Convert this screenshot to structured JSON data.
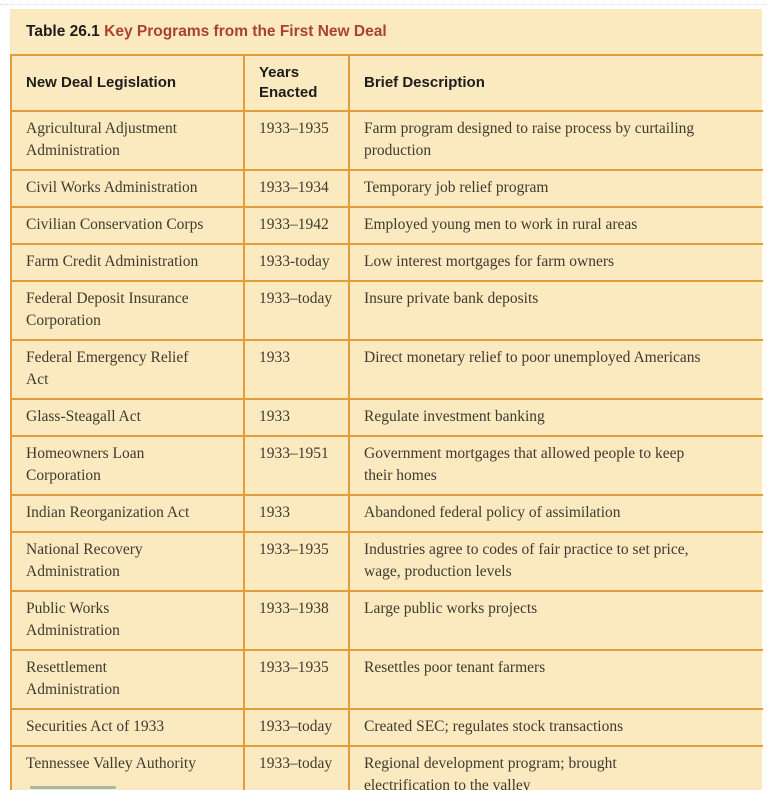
{
  "colors": {
    "table_background": "#fbe9bf",
    "border": "#e39c3c",
    "title_accent": "#aa4232",
    "heading_text": "#1d1d1b",
    "body_text": "#3f3b30"
  },
  "table": {
    "id_label": "Table 26.1",
    "title": "Key Programs from the First New Deal",
    "columns": {
      "legislation": "New Deal Legislation",
      "years": "Years\nEnacted",
      "description": "Brief Description"
    },
    "rows": [
      {
        "legislation": "Agricultural Adjustment\nAdministration",
        "years": "1933–1935",
        "description": "Farm program designed to raise process by curtailing\nproduction"
      },
      {
        "legislation": "Civil Works Administration",
        "years": "1933–1934",
        "description": "Temporary job relief program"
      },
      {
        "legislation": "Civilian Conservation Corps",
        "years": "1933–1942",
        "description": "Employed young men to work in rural areas"
      },
      {
        "legislation": "Farm Credit Administration",
        "years": "1933-today",
        "description": "Low interest mortgages for farm owners"
      },
      {
        "legislation": "Federal Deposit Insurance\nCorporation",
        "years": "1933–today",
        "description": "Insure private bank deposits"
      },
      {
        "legislation": "Federal Emergency Relief\nAct",
        "years": "1933",
        "description": "Direct monetary relief to poor unemployed Americans"
      },
      {
        "legislation": "Glass-Steagall Act",
        "years": "1933",
        "description": "Regulate investment banking"
      },
      {
        "legislation": "Homeowners Loan\nCorporation",
        "years": "1933–1951",
        "description": "Government mortgages that allowed people to keep\ntheir homes"
      },
      {
        "legislation": "Indian Reorganization Act",
        "years": "1933",
        "description": "Abandoned federal policy of assimilation"
      },
      {
        "legislation": "National Recovery\nAdministration",
        "years": "1933–1935",
        "description": "Industries agree to codes of fair practice to set price,\nwage, production levels"
      },
      {
        "legislation": "Public Works\nAdministration",
        "years": "1933–1938",
        "description": "Large public works projects"
      },
      {
        "legislation": "Resettlement\nAdministration",
        "years": "1933–1935",
        "description": "Resettles poor tenant farmers"
      },
      {
        "legislation": "Securities Act of 1933",
        "years": "1933–today",
        "description": "Created SEC; regulates stock transactions"
      },
      {
        "legislation": "Tennessee Valley Authority",
        "years": "1933–today",
        "description": "Regional development program; brought\nelectrification to the valley"
      }
    ]
  }
}
